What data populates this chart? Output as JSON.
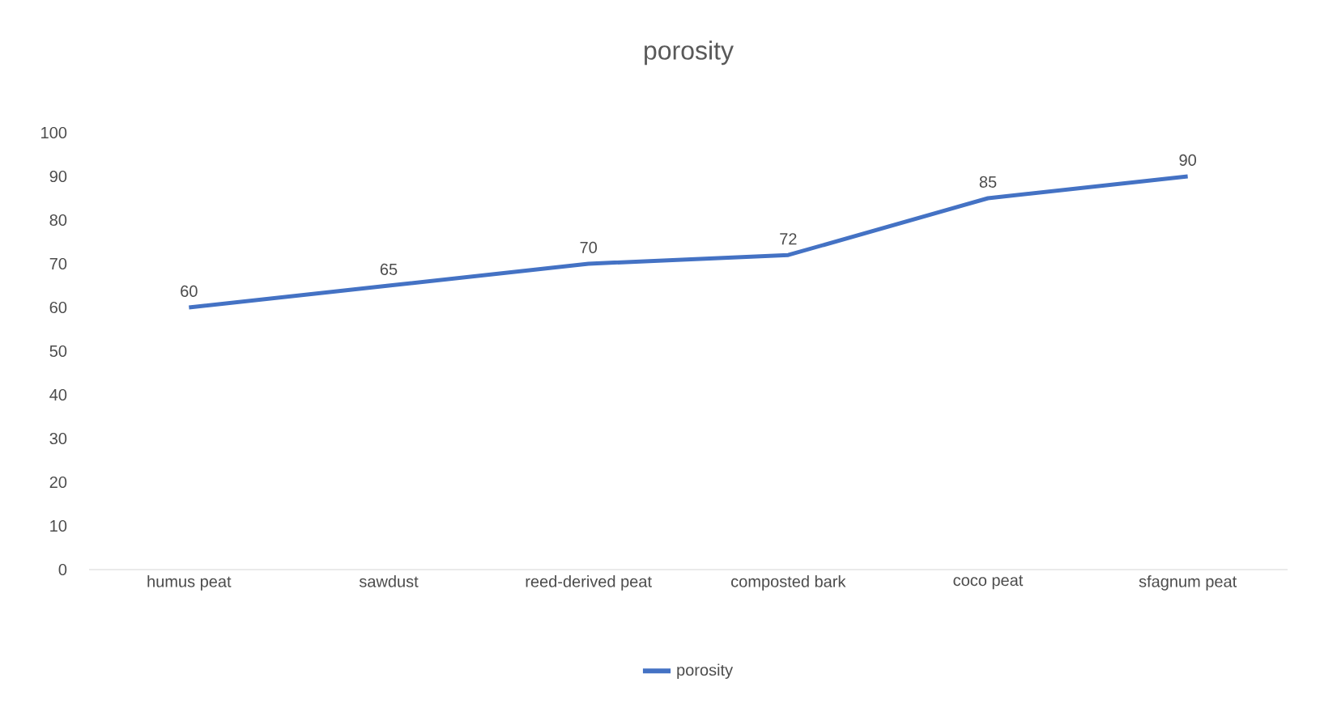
{
  "chart_data": {
    "type": "line",
    "title": "porosity",
    "categories": [
      "humus peat",
      "sawdust",
      "reed-derived peat",
      "composted bark",
      "coco peat",
      "sfagnum peat"
    ],
    "series": [
      {
        "name": "porosity",
        "color": "#4472c4",
        "values": [
          60,
          65,
          70,
          72,
          85,
          90
        ]
      }
    ],
    "ylim": [
      0,
      100
    ],
    "yticks": [
      0,
      10,
      20,
      30,
      40,
      50,
      60,
      70,
      80,
      90,
      100
    ],
    "data_labels": true,
    "legend": "bottom",
    "grid": false,
    "marker": "none",
    "line_style": "solid"
  }
}
